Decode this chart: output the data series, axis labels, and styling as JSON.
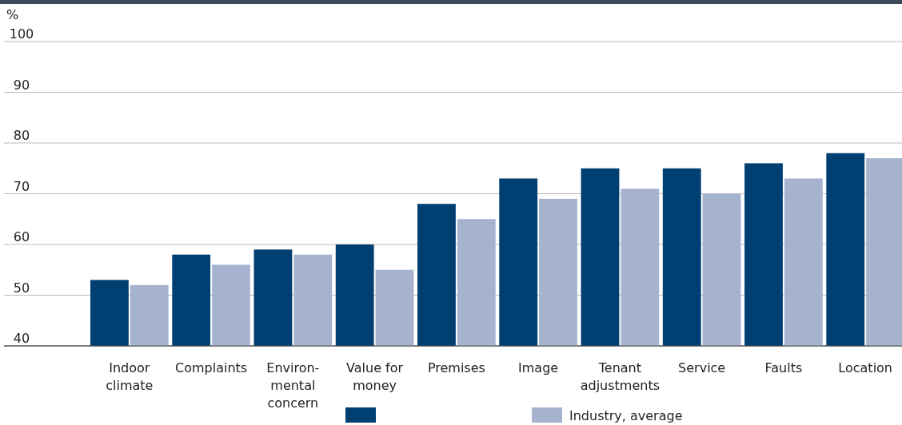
{
  "chart_data": {
    "type": "bar",
    "ylabel": "%",
    "categories": [
      "Indoor\nclimate",
      "Complaints",
      "Environ-\nmental\nconcern",
      "Value for\nmoney",
      "Premises",
      "Image",
      "Tenant\nadjustments",
      "Service",
      "Faults",
      "Location"
    ],
    "series": [
      {
        "color": "#003f72",
        "values": [
          53,
          58,
          59,
          60,
          68,
          73,
          75,
          75,
          76,
          78
        ]
      },
      {
        "name": "Industry, average",
        "color": "#a6b3cf",
        "values": [
          52,
          56,
          58,
          55,
          65,
          69,
          71,
          70,
          73,
          77
        ]
      }
    ],
    "ylim": [
      40,
      100
    ],
    "yticks": [
      40,
      50,
      60,
      70,
      80,
      90,
      100
    ],
    "grid": "y",
    "legend": "bottom"
  }
}
